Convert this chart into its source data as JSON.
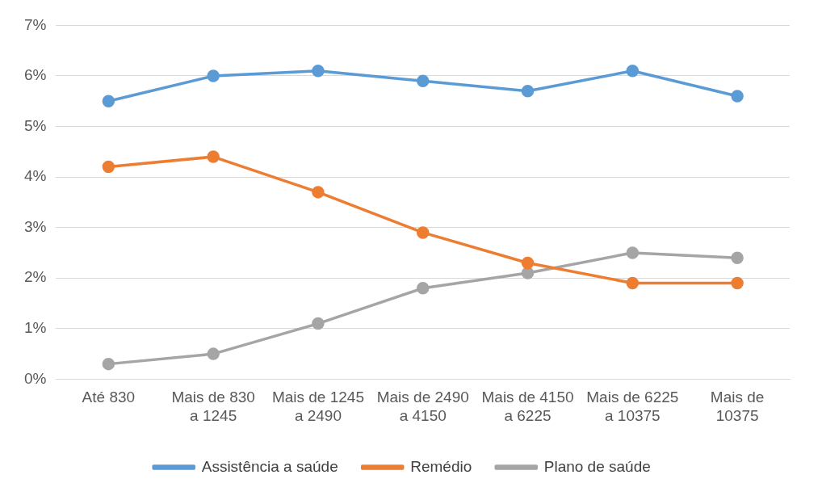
{
  "chart_data": {
    "type": "line",
    "categories": [
      "Até 830",
      "Mais de 830 a 1245",
      "Mais de 1245 a 2490",
      "Mais de 2490 a 4150",
      "Mais de 4150 a 6225",
      "Mais de 6225 a 10375",
      "Mais de 10375"
    ],
    "series": [
      {
        "name": "Assistência a saúde",
        "color": "#5b9bd5",
        "values": [
          5.5,
          6.0,
          6.1,
          5.9,
          5.7,
          6.1,
          5.6
        ]
      },
      {
        "name": "Remédio",
        "color": "#ed7d31",
        "values": [
          4.2,
          4.4,
          3.7,
          2.9,
          2.3,
          1.9,
          1.9
        ]
      },
      {
        "name": "Plano de saúde",
        "color": "#a5a5a5",
        "values": [
          0.3,
          0.5,
          1.1,
          1.8,
          2.1,
          2.5,
          2.4
        ]
      }
    ],
    "ylim": [
      0,
      7
    ],
    "yticks": [
      {
        "value": 0,
        "label": "0%"
      },
      {
        "value": 1,
        "label": "1%"
      },
      {
        "value": 2,
        "label": "2%"
      },
      {
        "value": 3,
        "label": "3%"
      },
      {
        "value": 4,
        "label": "4%"
      },
      {
        "value": 5,
        "label": "5%"
      },
      {
        "value": 6,
        "label": "6%"
      },
      {
        "value": 7,
        "label": "7%"
      }
    ],
    "grid": "y",
    "legend": "bottom",
    "marker": "circle",
    "line_style": "solid"
  }
}
